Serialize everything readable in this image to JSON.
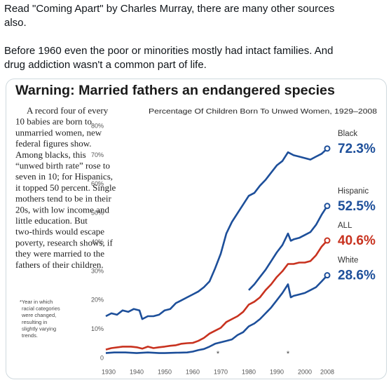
{
  "post": {
    "lines": [
      "Read \"Coming Apart\" by Charles Murray, there are many other sources",
      "also.",
      "Before 1960 even the poor or minorities mostly had intact families.  And",
      "drug addiction wasn't a common part of life."
    ]
  },
  "chart_data": {
    "type": "line",
    "title": "Warning: Married fathers an endangered species",
    "subtitle": "Percentage Of Children Born To Unwed Women, 1929–2008",
    "body": [
      "A record four of every",
      "10 babies are born to",
      "unmarried women, new",
      "federal figures show.",
      "Among blacks, this",
      "“unwed birth rate” rose to",
      "seven in 10; for Hispanics,",
      "it topped 50 percent. Single",
      "mothers tend to be in their",
      "20s, with low income and",
      "little education. But",
      "two-thirds would escape",
      "poverty, research shows, if",
      "they were married to the",
      "fathers of their children."
    ],
    "footnote": [
      "*Year in which",
      "racial categories",
      "were changed,",
      "resulting in",
      "slightly varying",
      "trends."
    ],
    "annotations": [
      {
        "x": 1969,
        "text": "*"
      },
      {
        "x": 1994,
        "text": "*"
      }
    ],
    "xlim": [
      1928,
      2010
    ],
    "xticks": [
      1930,
      1940,
      1950,
      1960,
      1970,
      1980,
      1990,
      2000,
      2008
    ],
    "ylim": [
      0,
      80
    ],
    "yticks": [
      0,
      {
        "value": 10,
        "label": "10%"
      },
      {
        "value": 20,
        "label": "20%"
      },
      {
        "value": 30,
        "label": "30%"
      },
      {
        "value": 40,
        "label": "40%"
      },
      {
        "value": 50,
        "label": "50%"
      },
      {
        "value": 60,
        "label": "60%"
      },
      {
        "value": 70,
        "label": "70%"
      },
      {
        "value": 80,
        "label": "80%"
      }
    ],
    "grid": false,
    "series": [
      {
        "name": "Black",
        "color": "#1d4f9a",
        "x": [
          1929,
          1931,
          1933,
          1935,
          1937,
          1939,
          1941,
          1942,
          1944,
          1946,
          1948,
          1950,
          1952,
          1954,
          1956,
          1958,
          1960,
          1962,
          1964,
          1966,
          1968,
          1970,
          1972,
          1974,
          1976,
          1978,
          1980,
          1982,
          1984,
          1986,
          1988,
          1990,
          1992,
          1994,
          1996,
          1998,
          2000,
          2002,
          2004,
          2006,
          2008
        ],
        "values": [
          14.5,
          15.5,
          15,
          16.5,
          16,
          17,
          16.5,
          13.5,
          14.5,
          14.5,
          15,
          16.5,
          17,
          19,
          20,
          21,
          22,
          23,
          24.5,
          26.5,
          31,
          36,
          43,
          47,
          50,
          53,
          56,
          57,
          59.5,
          61.5,
          64,
          66.5,
          68,
          71,
          70,
          69.5,
          69,
          68.5,
          69.5,
          70.5,
          72.3
        ],
        "value_labels": [
          null,
          null,
          null,
          null,
          null,
          null,
          null,
          null,
          null,
          null,
          null,
          null,
          null,
          null,
          null,
          null,
          null,
          null,
          null,
          null,
          null,
          null,
          null,
          null,
          null,
          null,
          null,
          null,
          null,
          null,
          null,
          null,
          null,
          null,
          null,
          null,
          null,
          null,
          null,
          null,
          "72.3%"
        ]
      },
      {
        "name": "Hispanic",
        "color": "#1d4f9a",
        "x": [
          1980,
          1982,
          1984,
          1986,
          1988,
          1990,
          1992,
          1994,
          1995,
          1996,
          1998,
          2000,
          2002,
          2004,
          2006,
          2008
        ],
        "values": [
          23.5,
          25.5,
          28,
          30.5,
          33.5,
          36.5,
          39,
          43,
          40.5,
          41,
          41.5,
          42.5,
          43.5,
          46,
          49.5,
          52.5
        ],
        "value_labels": [
          null,
          null,
          null,
          null,
          null,
          null,
          null,
          null,
          null,
          null,
          null,
          null,
          null,
          null,
          null,
          "52.5%"
        ]
      },
      {
        "name": "ALL",
        "color": "#c8321f",
        "x": [
          1929,
          1931,
          1935,
          1938,
          1940,
          1942,
          1944,
          1946,
          1948,
          1950,
          1952,
          1954,
          1956,
          1958,
          1960,
          1962,
          1964,
          1966,
          1968,
          1970,
          1972,
          1974,
          1976,
          1978,
          1980,
          1982,
          1984,
          1986,
          1988,
          1990,
          1992,
          1994,
          1996,
          1998,
          2000,
          2002,
          2004,
          2006,
          2008
        ],
        "values": [
          3,
          3.5,
          4,
          4,
          3.8,
          3.3,
          4,
          3.5,
          3.8,
          4,
          4.3,
          4.5,
          5,
          5.2,
          5.3,
          6,
          7,
          8.5,
          9.5,
          10.5,
          12.5,
          13.5,
          14.5,
          16,
          18.5,
          19.5,
          21,
          23.5,
          25.5,
          28,
          30,
          32.5,
          32.5,
          33,
          33,
          33.5,
          35.5,
          38.5,
          40.6
        ],
        "value_labels": [
          null,
          null,
          null,
          null,
          null,
          null,
          null,
          null,
          null,
          null,
          null,
          null,
          null,
          null,
          null,
          null,
          null,
          null,
          null,
          null,
          null,
          null,
          null,
          null,
          null,
          null,
          null,
          null,
          null,
          null,
          null,
          null,
          null,
          null,
          null,
          null,
          null,
          null,
          "40.6%"
        ]
      },
      {
        "name": "White",
        "color": "#1d4f9a",
        "x": [
          1929,
          1932,
          1936,
          1940,
          1944,
          1948,
          1950,
          1954,
          1958,
          1960,
          1962,
          1964,
          1966,
          1968,
          1970,
          1972,
          1974,
          1976,
          1978,
          1980,
          1982,
          1984,
          1986,
          1988,
          1990,
          1992,
          1994,
          1995,
          1996,
          1998,
          2000,
          2002,
          2004,
          2006,
          2008
        ],
        "values": [
          1.8,
          2,
          2,
          1.8,
          2,
          1.8,
          1.8,
          1.9,
          2,
          2.3,
          2.8,
          3.2,
          4,
          5,
          5.5,
          6,
          6.5,
          8,
          9,
          11,
          12,
          13.5,
          15.5,
          17.5,
          20,
          22.5,
          25.5,
          21,
          21.5,
          22,
          22.5,
          23.5,
          24.5,
          26.5,
          28.6
        ],
        "value_labels": [
          null,
          null,
          null,
          null,
          null,
          null,
          null,
          null,
          null,
          null,
          null,
          null,
          null,
          null,
          null,
          null,
          null,
          null,
          null,
          null,
          null,
          null,
          null,
          null,
          null,
          null,
          null,
          null,
          null,
          null,
          null,
          null,
          null,
          null,
          "28.6%"
        ]
      }
    ]
  }
}
